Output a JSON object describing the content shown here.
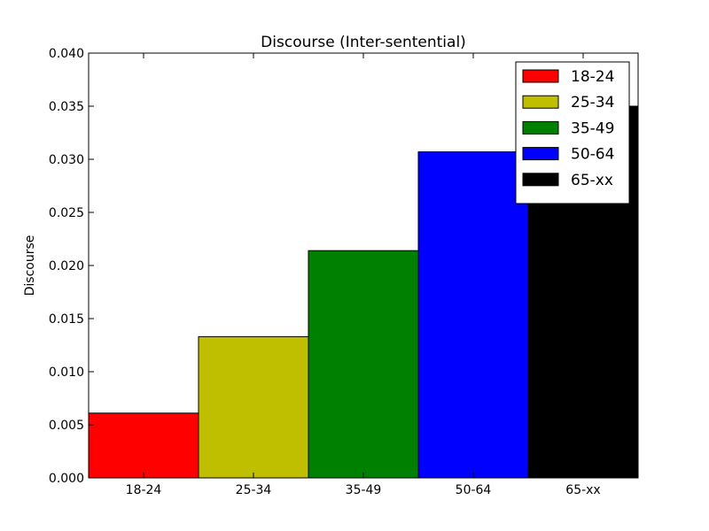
{
  "chart_data": {
    "type": "bar",
    "title": "Discourse (Inter-sentential)",
    "xlabel": "",
    "ylabel": "Discourse",
    "ylim": [
      0,
      0.04
    ],
    "yticks": [
      "0.000",
      "0.005",
      "0.010",
      "0.015",
      "0.020",
      "0.025",
      "0.030",
      "0.035",
      "0.040"
    ],
    "categories": [
      "18-24",
      "25-34",
      "35-49",
      "50-64",
      "65-xx"
    ],
    "values": [
      0.0061,
      0.0133,
      0.0214,
      0.0307,
      0.035
    ],
    "colors": [
      "#ff0000",
      "#bfbf00",
      "#008000",
      "#0000ff",
      "#000000"
    ],
    "legend": {
      "position": "top-right",
      "entries": [
        "18-24",
        "25-34",
        "35-49",
        "50-64",
        "65-xx"
      ]
    },
    "grid": false
  }
}
